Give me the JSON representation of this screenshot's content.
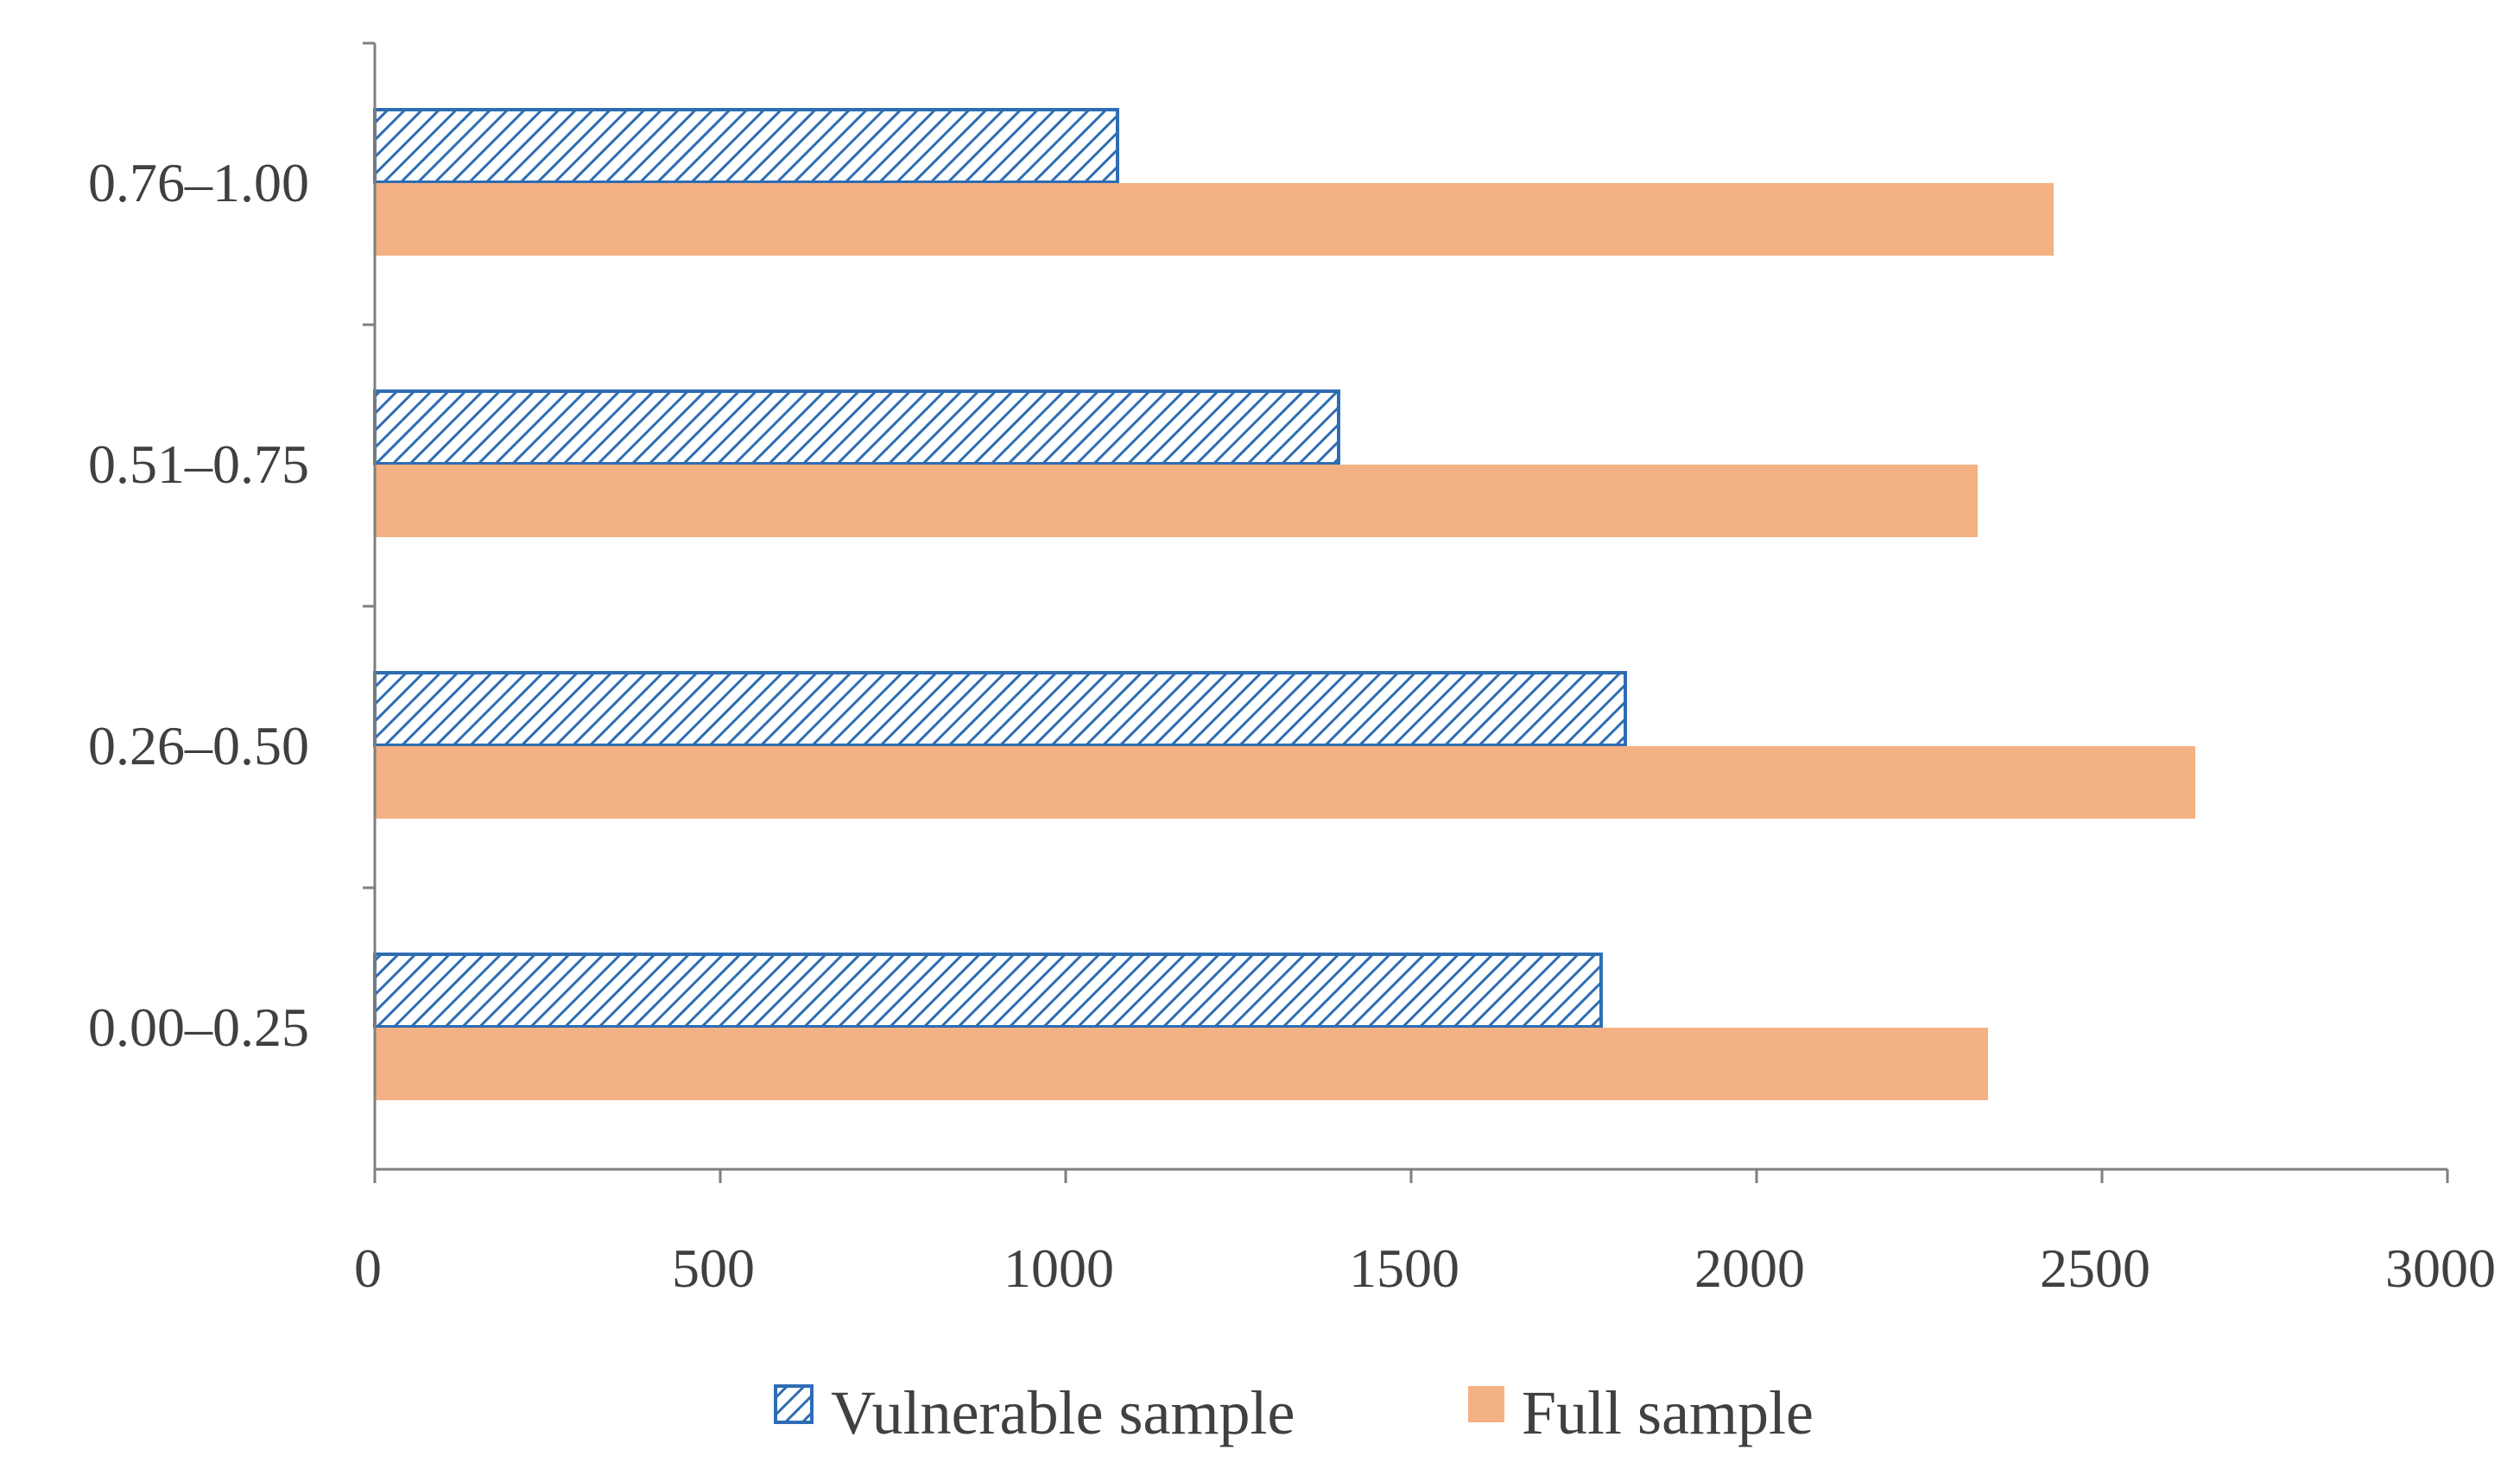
{
  "chart_data": {
    "type": "bar",
    "orientation": "horizontal",
    "title": "",
    "xlabel": "",
    "ylabel": "",
    "categories": [
      "0.00–0.25",
      "0.26–0.50",
      "0.51–0.75",
      "0.76–1.00"
    ],
    "series": [
      {
        "name": "Vulnerable sample",
        "values": [
          1775,
          1810,
          1395,
          1075
        ]
      },
      {
        "name": "Full sample",
        "values": [
          2335,
          2635,
          2320,
          2430
        ]
      }
    ],
    "xlim": [
      0,
      3000
    ],
    "xticks": [
      "0",
      "500",
      "1000",
      "1500",
      "2000",
      "2500",
      "3000"
    ],
    "legend_position": "bottom",
    "grid": false
  },
  "colors": {
    "vulnerable_stroke": "#2e6db4",
    "vulnerable_fill": "#ffffff",
    "full_fill": "#f4b183",
    "axis": "#7f7f7f",
    "text": "#404040"
  }
}
